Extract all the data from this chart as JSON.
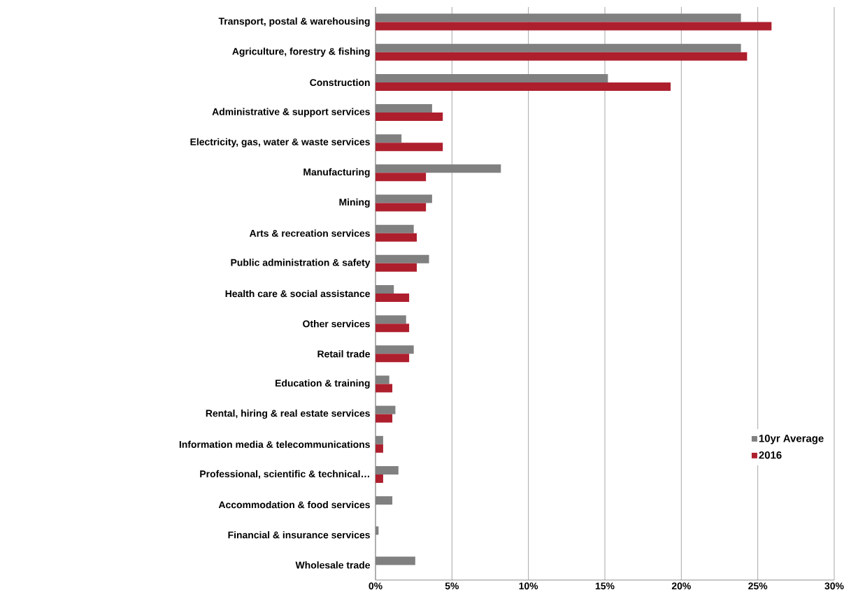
{
  "chart_data": {
    "type": "bar",
    "orientation": "horizontal",
    "categories": [
      "Transport, postal & warehousing",
      "Agriculture, forestry & fishing",
      "Construction",
      "Administrative & support services",
      "Electricity, gas, water & waste services",
      "Manufacturing",
      "Mining",
      "Arts & recreation services",
      "Public administration & safety",
      "Health care & social assistance",
      "Other services",
      "Retail trade",
      "Education & training",
      "Rental, hiring & real estate services",
      "Information media & telecommunications",
      "Professional, scientific & technical…",
      "Accommodation & food services",
      "Financial & insurance services",
      "Wholesale trade"
    ],
    "series": [
      {
        "name": "10yr Average",
        "color": "#808080",
        "values": [
          23.9,
          23.9,
          15.2,
          3.7,
          1.7,
          8.2,
          3.7,
          2.5,
          3.5,
          1.2,
          2.0,
          2.5,
          0.9,
          1.3,
          0.5,
          1.5,
          1.1,
          0.2,
          2.6
        ]
      },
      {
        "name": "2016",
        "color": "#ae1f2e",
        "values": [
          25.9,
          24.3,
          19.3,
          4.4,
          4.4,
          3.3,
          3.3,
          2.7,
          2.7,
          2.2,
          2.2,
          2.2,
          1.1,
          1.1,
          0.5,
          0.5,
          0,
          0,
          0
        ]
      }
    ],
    "xlim": [
      0,
      30
    ],
    "xticks": [
      {
        "value": 0,
        "label": "0%"
      },
      {
        "value": 5,
        "label": "5%"
      },
      {
        "value": 10,
        "label": "10%"
      },
      {
        "value": 15,
        "label": "15%"
      },
      {
        "value": 20,
        "label": "20%"
      },
      {
        "value": 25,
        "label": "25%"
      },
      {
        "value": 30,
        "label": "30%"
      }
    ],
    "grid": "x",
    "legend": "bottom right"
  }
}
